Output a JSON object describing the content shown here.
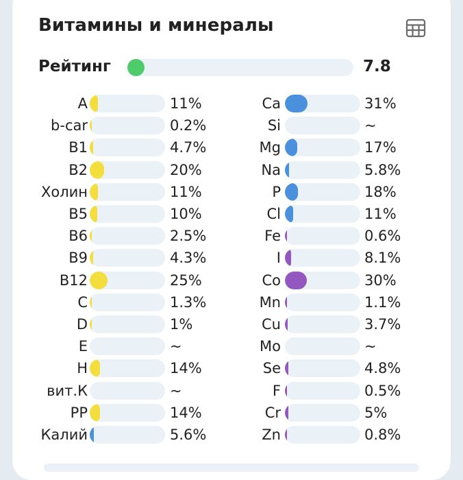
{
  "header": {
    "title": "Витамины и минералы",
    "table_icon": "table-grid-icon"
  },
  "rating": {
    "label": "Рейтинг",
    "value": "7.8",
    "color": "#4fcb6b"
  },
  "colors": {
    "vitamin": "#f3de3d",
    "mineral_blue": "#4a90dd",
    "mineral_purple": "#9457c0",
    "track": "#eaf2f7"
  },
  "vitamins": [
    {
      "label": "A",
      "value": "11%"
    },
    {
      "label": "b-car",
      "value": "0.2%"
    },
    {
      "label": "B1",
      "value": "4.7%"
    },
    {
      "label": "B2",
      "value": "20%"
    },
    {
      "label": "Холин",
      "value": "11%"
    },
    {
      "label": "B5",
      "value": "10%"
    },
    {
      "label": "B6",
      "value": "2.5%"
    },
    {
      "label": "B9",
      "value": "4.3%"
    },
    {
      "label": "B12",
      "value": "25%"
    },
    {
      "label": "C",
      "value": "1.3%"
    },
    {
      "label": "D",
      "value": "1%"
    },
    {
      "label": "E",
      "value": "~"
    },
    {
      "label": "H",
      "value": "14%"
    },
    {
      "label": "вит.К",
      "value": "~"
    },
    {
      "label": "PP",
      "value": "14%"
    },
    {
      "label": "Калий",
      "value": "5.6%"
    }
  ],
  "minerals": [
    {
      "label": "Ca",
      "value": "31%"
    },
    {
      "label": "Si",
      "value": "~"
    },
    {
      "label": "Mg",
      "value": "17%"
    },
    {
      "label": "Na",
      "value": "5.8%"
    },
    {
      "label": "P",
      "value": "18%"
    },
    {
      "label": "Cl",
      "value": "11%"
    },
    {
      "label": "Fe",
      "value": "0.6%"
    },
    {
      "label": "I",
      "value": "8.1%"
    },
    {
      "label": "Co",
      "value": "30%"
    },
    {
      "label": "Mn",
      "value": "1.1%"
    },
    {
      "label": "Cu",
      "value": "3.7%"
    },
    {
      "label": "Mo",
      "value": "~"
    },
    {
      "label": "Se",
      "value": "4.8%"
    },
    {
      "label": "F",
      "value": "0.5%"
    },
    {
      "label": "Cr",
      "value": "5%"
    },
    {
      "label": "Zn",
      "value": "0.8%"
    }
  ]
}
